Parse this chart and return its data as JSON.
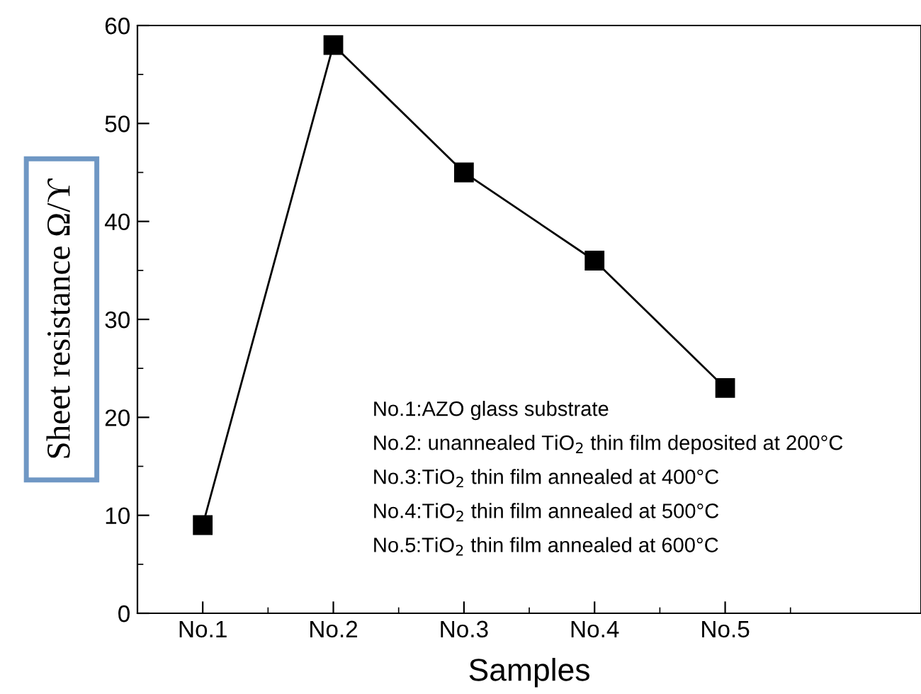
{
  "chart_data": {
    "type": "line",
    "xlabel": "Samples",
    "ylabel": "Sheet resistance Ω/ϒ",
    "categories": [
      "No.1",
      "No.2",
      "No.3",
      "No.4",
      "No.5"
    ],
    "series": [
      {
        "color": "#000000",
        "values": [
          9,
          58,
          45,
          36,
          23
        ]
      }
    ],
    "marker": "square",
    "line_style": "solid",
    "ylim": [
      0,
      60
    ],
    "yticks": [
      0,
      10,
      20,
      30,
      40,
      50,
      60
    ],
    "grid": false,
    "legend": false,
    "annotations": [
      "No.1:AZO glass substrate",
      "No.2: unannealed TiO$_{2}$ thin film deposited at 200°C",
      "No.3:TiO$_{2}$ thin film annealed at 400°C",
      "No.4:TiO$_{2}$ thin film annealed at 500°C",
      "No.5:TiO$_{2}$ thin film annealed at 600°C"
    ]
  }
}
